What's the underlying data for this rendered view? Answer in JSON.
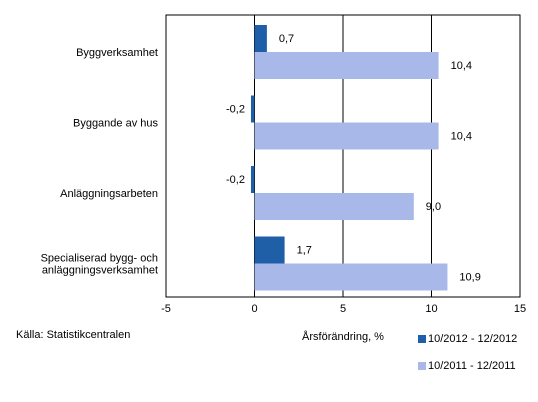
{
  "chart_data": {
    "type": "bar",
    "orientation": "horizontal",
    "categories": [
      [
        "Byggverksamhet"
      ],
      [
        "Byggande av hus"
      ],
      [
        "Anläggningsarbeten"
      ],
      [
        "Specialiserad bygg- och",
        "anläggningsverksamhet"
      ]
    ],
    "series": [
      {
        "name": "10/2012 - 12/2012",
        "color": "#1f5fa8",
        "values": [
          0.7,
          -0.2,
          -0.2,
          1.7
        ],
        "labels": [
          "0,7",
          "-0,2",
          "-0,2",
          "1,7"
        ]
      },
      {
        "name": "10/2011 - 12/2011",
        "color": "#a8b8e8",
        "values": [
          10.4,
          10.4,
          9.0,
          10.9
        ],
        "labels": [
          "10,4",
          "10,4",
          "9,0",
          "10,9"
        ]
      }
    ],
    "xlim": [
      -5,
      15
    ],
    "xticks": [
      -5,
      0,
      5,
      10,
      15
    ],
    "xtick_labels": [
      "-5",
      "0",
      "5",
      "10",
      "15"
    ],
    "xlabel": "Årsförändring, %",
    "grid": "vertical",
    "legend_position": "bottom-right"
  },
  "source": "Källa: Statistikcentralen"
}
